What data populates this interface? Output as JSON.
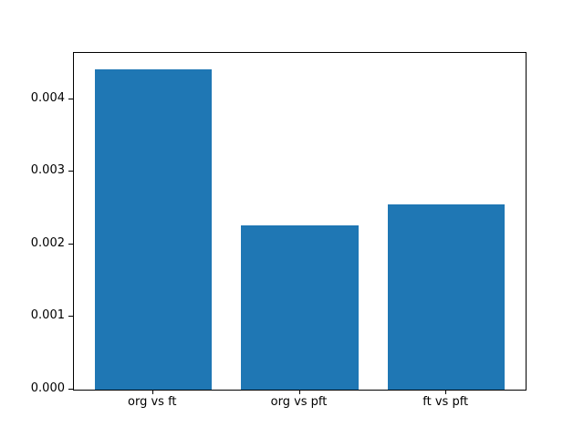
{
  "chart_data": {
    "type": "bar",
    "categories": [
      "org vs ft",
      "org vs pft",
      "ft vs pft"
    ],
    "values": [
      0.00442,
      0.00227,
      0.00255
    ],
    "title": "",
    "xlabel": "",
    "ylabel": "",
    "ylim": [
      0,
      0.004641
    ],
    "yticks": [
      0,
      0.001,
      0.002,
      0.003,
      0.004
    ],
    "ytick_labels": [
      "0.000",
      "0.001",
      "0.002",
      "0.003",
      "0.004"
    ],
    "bar_color": "#1f77b4",
    "spine_color": "#000000",
    "background_color": "#ffffff",
    "grid": false,
    "legend": null
  }
}
